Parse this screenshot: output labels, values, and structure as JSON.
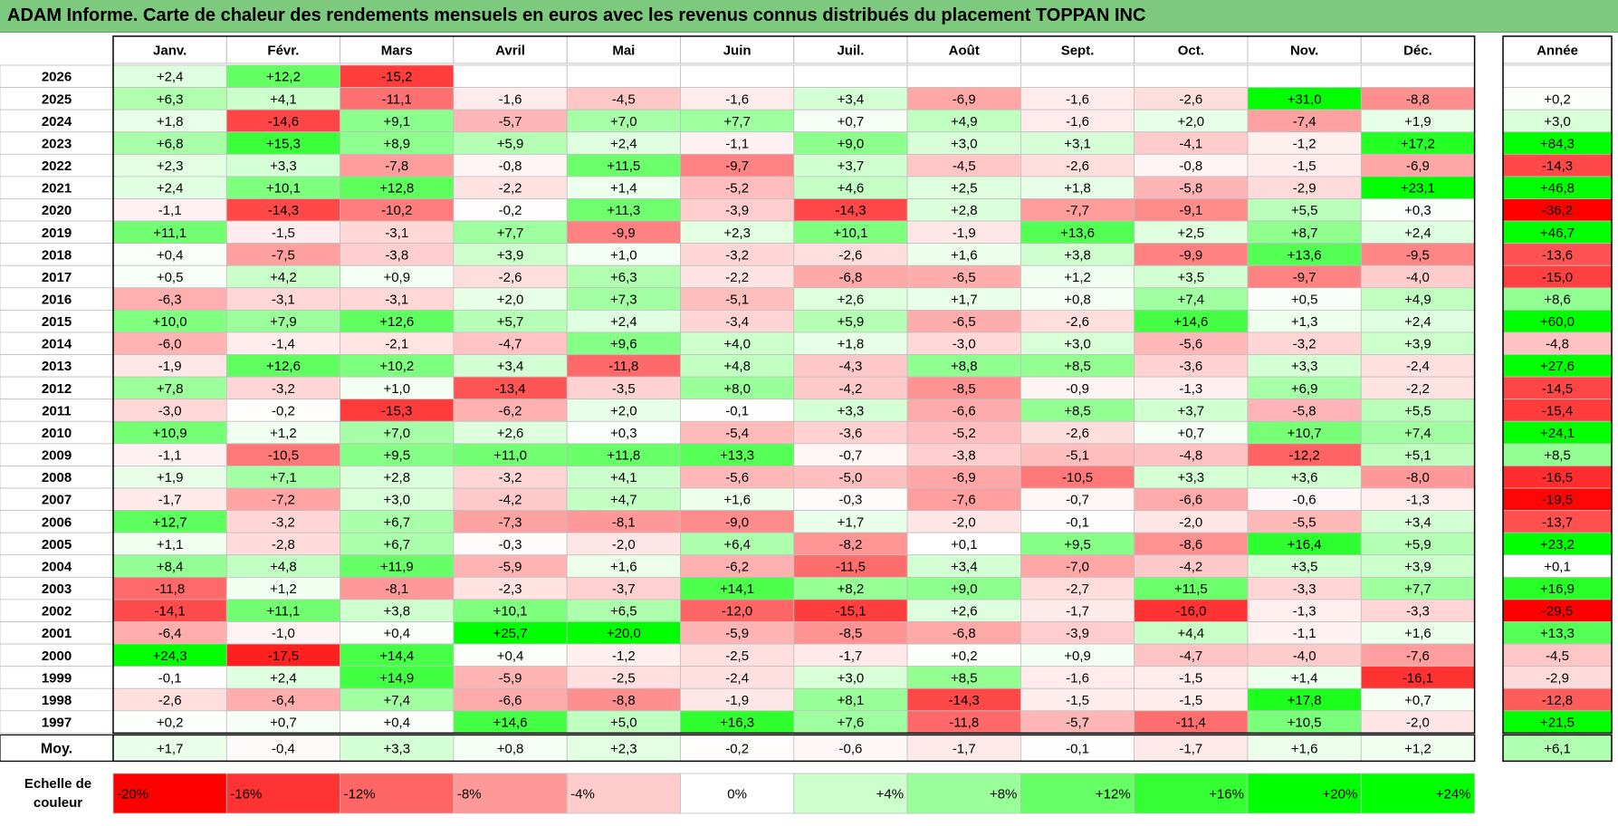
{
  "title": "ADAM Informe. Carte de chaleur des rendements mensuels en euros avec les revenus connus distribués du placement TOPPAN INC",
  "chart_data": {
    "type": "heatmap",
    "title": "ADAM Informe. Carte de chaleur des rendements mensuels en euros avec les revenus connus distribués du placement TOPPAN INC",
    "columns": [
      "Janv.",
      "Févr.",
      "Mars",
      "Avril",
      "Mai",
      "Juin",
      "Juil.",
      "Août",
      "Sept.",
      "Oct.",
      "Nov.",
      "Déc."
    ],
    "year_column_label": "Année",
    "rows": [
      {
        "year": "2026",
        "values": [
          "+2,4",
          "+12,2",
          "-15,2",
          "",
          "",
          "",
          "",
          "",
          "",
          "",
          "",
          ""
        ],
        "annual": ""
      },
      {
        "year": "2025",
        "values": [
          "+6,3",
          "+4,1",
          "-11,1",
          "-1,6",
          "-4,5",
          "-1,6",
          "+3,4",
          "-6,9",
          "-1,6",
          "-2,6",
          "+31,0",
          "-8,8"
        ],
        "annual": "+0,2"
      },
      {
        "year": "2024",
        "values": [
          "+1,8",
          "-14,6",
          "+9,1",
          "-5,7",
          "+7,0",
          "+7,7",
          "+0,7",
          "+4,9",
          "-1,6",
          "+2,0",
          "-7,4",
          "+1,9"
        ],
        "annual": "+3,0"
      },
      {
        "year": "2023",
        "values": [
          "+6,8",
          "+15,3",
          "+8,9",
          "+5,9",
          "+2,4",
          "-1,1",
          "+9,0",
          "+3,0",
          "+3,1",
          "-4,1",
          "-1,2",
          "+17,2"
        ],
        "annual": "+84,3"
      },
      {
        "year": "2022",
        "values": [
          "+2,3",
          "+3,3",
          "-7,8",
          "-0,8",
          "+11,5",
          "-9,7",
          "+3,7",
          "-4,5",
          "-2,6",
          "-0,8",
          "-1,5",
          "-6,9"
        ],
        "annual": "-14,3"
      },
      {
        "year": "2021",
        "values": [
          "+2,4",
          "+10,1",
          "+12,8",
          "-2,2",
          "+1,4",
          "-5,2",
          "+4,6",
          "+2,5",
          "+1,8",
          "-5,8",
          "-2,9",
          "+23,1"
        ],
        "annual": "+46,8"
      },
      {
        "year": "2020",
        "values": [
          "-1,1",
          "-14,3",
          "-10,2",
          "-0,2",
          "+11,3",
          "-3,9",
          "-14,3",
          "+2,8",
          "-7,7",
          "-9,1",
          "+5,5",
          "+0,3"
        ],
        "annual": "-36,2"
      },
      {
        "year": "2019",
        "values": [
          "+11,1",
          "-1,5",
          "-3,1",
          "+7,7",
          "-9,9",
          "+2,3",
          "+10,1",
          "-1,9",
          "+13,6",
          "+2,5",
          "+8,7",
          "+2,4"
        ],
        "annual": "+46,7"
      },
      {
        "year": "2018",
        "values": [
          "+0,4",
          "-7,5",
          "-3,8",
          "+3,9",
          "+1,0",
          "-3,2",
          "-2,6",
          "+1,6",
          "+3,8",
          "-9,9",
          "+13,6",
          "-9,5"
        ],
        "annual": "-13,6"
      },
      {
        "year": "2017",
        "values": [
          "+0,5",
          "+4,2",
          "+0,9",
          "-2,6",
          "+6,3",
          "-2,2",
          "-6,8",
          "-6,5",
          "+1,2",
          "+3,5",
          "-9,7",
          "-4,0"
        ],
        "annual": "-15,0"
      },
      {
        "year": "2016",
        "values": [
          "-6,3",
          "-3,1",
          "-3,1",
          "+2,0",
          "+7,3",
          "-5,1",
          "+2,6",
          "+1,7",
          "+0,8",
          "+7,4",
          "+0,5",
          "+4,9"
        ],
        "annual": "+8,6"
      },
      {
        "year": "2015",
        "values": [
          "+10,0",
          "+7,9",
          "+12,6",
          "+5,7",
          "+2,4",
          "-3,4",
          "+5,9",
          "-6,5",
          "-2,6",
          "+14,6",
          "+1,3",
          "+2,4"
        ],
        "annual": "+60,0"
      },
      {
        "year": "2014",
        "values": [
          "-6,0",
          "-1,4",
          "-2,1",
          "-4,7",
          "+9,6",
          "+4,0",
          "+1,8",
          "-3,0",
          "+3,0",
          "-5,6",
          "-3,2",
          "+3,9"
        ],
        "annual": "-4,8"
      },
      {
        "year": "2013",
        "values": [
          "-1,9",
          "+12,6",
          "+10,2",
          "+3,4",
          "-11,8",
          "+4,8",
          "-4,3",
          "+8,8",
          "+8,5",
          "-3,6",
          "+3,3",
          "-2,4"
        ],
        "annual": "+27,6"
      },
      {
        "year": "2012",
        "values": [
          "+7,8",
          "-3,2",
          "+1,0",
          "-13,4",
          "-3,5",
          "+8,0",
          "-4,2",
          "-8,5",
          "-0,9",
          "-1,3",
          "+6,9",
          "-2,2"
        ],
        "annual": "-14,5"
      },
      {
        "year": "2011",
        "values": [
          "-3,0",
          "-0,2",
          "-15,3",
          "-6,2",
          "+2,0",
          "-0,1",
          "+3,3",
          "-6,6",
          "+8,5",
          "+3,7",
          "-5,8",
          "+5,5"
        ],
        "annual": "-15,4"
      },
      {
        "year": "2010",
        "values": [
          "+10,9",
          "+1,2",
          "+7,0",
          "+2,6",
          "+0,3",
          "-5,4",
          "-3,6",
          "-5,2",
          "-2,6",
          "+0,7",
          "+10,7",
          "+7,4"
        ],
        "annual": "+24,1"
      },
      {
        "year": "2009",
        "values": [
          "-1,1",
          "-10,5",
          "+9,5",
          "+11,0",
          "+11,8",
          "+13,3",
          "-0,7",
          "-3,8",
          "-5,1",
          "-4,8",
          "-12,2",
          "+5,1"
        ],
        "annual": "+8,5"
      },
      {
        "year": "2008",
        "values": [
          "+1,9",
          "+7,1",
          "+2,8",
          "-3,2",
          "+4,1",
          "-5,6",
          "-5,0",
          "-6,9",
          "-10,5",
          "+3,3",
          "+3,6",
          "-8,0"
        ],
        "annual": "-16,5"
      },
      {
        "year": "2007",
        "values": [
          "-1,7",
          "-7,2",
          "+3,0",
          "-4,2",
          "+4,7",
          "+1,6",
          "-0,3",
          "-7,6",
          "-0,7",
          "-6,6",
          "-0,6",
          "-1,3"
        ],
        "annual": "-19,5"
      },
      {
        "year": "2006",
        "values": [
          "+12,7",
          "-3,2",
          "+6,7",
          "-7,3",
          "-8,1",
          "-9,0",
          "+1,7",
          "-2,0",
          "-0,1",
          "-2,0",
          "-5,5",
          "+3,4"
        ],
        "annual": "-13,7"
      },
      {
        "year": "2005",
        "values": [
          "+1,1",
          "-2,8",
          "+6,7",
          "-0,3",
          "-2,0",
          "+6,4",
          "-8,2",
          "+0,1",
          "+9,5",
          "-8,6",
          "+16,4",
          "+5,9"
        ],
        "annual": "+23,2"
      },
      {
        "year": "2004",
        "values": [
          "+8,4",
          "+4,8",
          "+11,9",
          "-5,9",
          "+1,6",
          "-6,2",
          "-11,5",
          "+3,4",
          "-7,0",
          "-4,2",
          "+3,5",
          "+3,9"
        ],
        "annual": "+0,1"
      },
      {
        "year": "2003",
        "values": [
          "-11,8",
          "+1,2",
          "-8,1",
          "-2,3",
          "-3,7",
          "+14,1",
          "+8,2",
          "+9,0",
          "-2,7",
          "+11,5",
          "-3,3",
          "+7,7"
        ],
        "annual": "+16,9"
      },
      {
        "year": "2002",
        "values": [
          "-14,1",
          "+11,1",
          "+3,8",
          "+10,1",
          "+6,5",
          "-12,0",
          "-15,1",
          "+2,6",
          "-1,7",
          "-16,0",
          "-1,3",
          "-3,3"
        ],
        "annual": "-29,5"
      },
      {
        "year": "2001",
        "values": [
          "-6,4",
          "-1,0",
          "+0,4",
          "+25,7",
          "+20,0",
          "-5,9",
          "-8,5",
          "-6,8",
          "-3,9",
          "+4,4",
          "-1,1",
          "+1,6"
        ],
        "annual": "+13,3"
      },
      {
        "year": "2000",
        "values": [
          "+24,3",
          "-17,5",
          "+14,4",
          "+0,4",
          "-1,2",
          "-2,5",
          "-1,7",
          "+0,2",
          "+0,9",
          "-4,7",
          "-4,0",
          "-7,6"
        ],
        "annual": "-4,5"
      },
      {
        "year": "1999",
        "values": [
          "-0,1",
          "+2,4",
          "+14,9",
          "-5,9",
          "-2,5",
          "-2,4",
          "+3,0",
          "+8,5",
          "-1,6",
          "-1,5",
          "+1,4",
          "-16,1"
        ],
        "annual": "-2,9"
      },
      {
        "year": "1998",
        "values": [
          "-2,6",
          "-6,4",
          "+7,4",
          "-6,6",
          "-8,8",
          "-1,9",
          "+8,1",
          "-14,3",
          "-1,5",
          "-1,5",
          "+17,8",
          "+0,7"
        ],
        "annual": "-12,8"
      },
      {
        "year": "1997",
        "values": [
          "+0,2",
          "+0,7",
          "+0,4",
          "+14,6",
          "+5,0",
          "+16,3",
          "+7,6",
          "-11,8",
          "-5,7",
          "-11,4",
          "+10,5",
          "-2,0"
        ],
        "annual": "+21,5"
      }
    ],
    "average": {
      "label": "Moy.",
      "values": [
        "+1,7",
        "-0,4",
        "+3,3",
        "+0,8",
        "+2,3",
        "-0,2",
        "-0,6",
        "-1,7",
        "-0,1",
        "-1,7",
        "+1,6",
        "+1,2"
      ],
      "annual": "+6,1"
    },
    "color_scale": {
      "label_line1": "Echelle de",
      "label_line2": "couleur",
      "stops": [
        {
          "label": "-20%",
          "color": "#ff0000"
        },
        {
          "label": "-16%",
          "color": "#ff3333"
        },
        {
          "label": "-12%",
          "color": "#ff6666"
        },
        {
          "label": "-8%",
          "color": "#ff9999"
        },
        {
          "label": "-4%",
          "color": "#ffcccc"
        },
        {
          "label": "0%",
          "color": "#ffffff"
        },
        {
          "label": "+4%",
          "color": "#ccffcc"
        },
        {
          "label": "+8%",
          "color": "#99ff99"
        },
        {
          "label": "+12%",
          "color": "#66ff66"
        },
        {
          "label": "+16%",
          "color": "#33ff33"
        },
        {
          "label": "+20%",
          "color": "#00ff00"
        },
        {
          "label": "+24%",
          "color": "#00ff00"
        }
      ]
    },
    "colors": {
      "title_bar": "#7dc97d",
      "negative": "#ff0000",
      "positive": "#00ff00",
      "neutral": "#ffffff",
      "grid": "#bfbfbf"
    }
  }
}
